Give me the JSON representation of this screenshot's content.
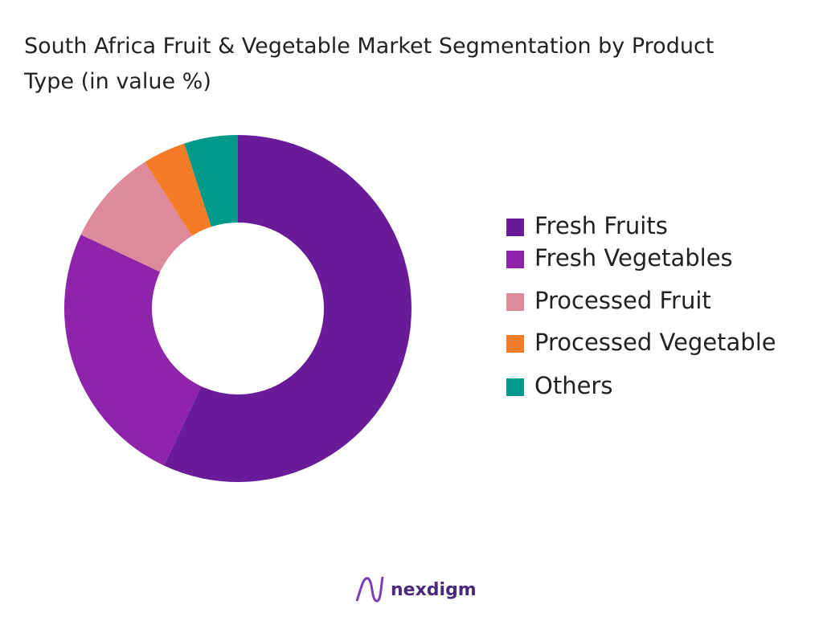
{
  "chart_data": {
    "type": "donut",
    "title": "South Africa Fruit & Vegetable Market Segmentation by Product Type (in value %)",
    "categories": [
      "Fresh Fruits",
      "Fresh Vegetables",
      "Processed Fruit",
      "Processed Vegetable",
      "Others"
    ],
    "values": [
      57,
      25,
      9,
      4,
      5
    ],
    "colors": [
      "#6a1b9a",
      "#8e24aa",
      "#de8a9c",
      "#f57c26",
      "#00998a"
    ],
    "legend": "right"
  },
  "footer": {
    "brand": "nexdigm"
  }
}
